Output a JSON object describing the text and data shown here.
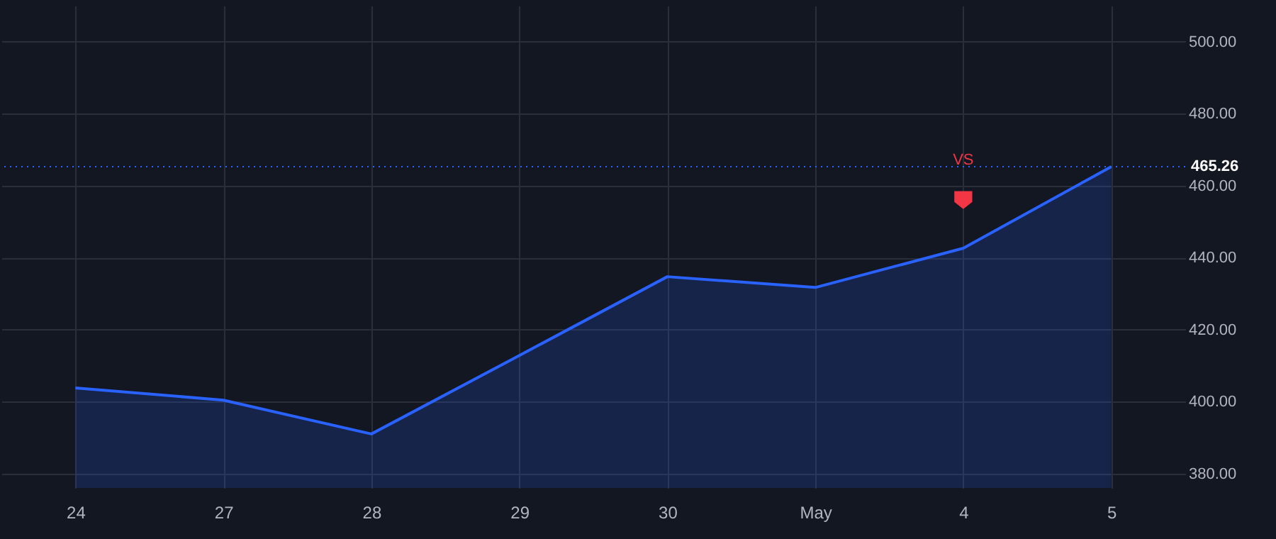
{
  "chart_data": {
    "type": "area",
    "categories": [
      "24",
      "27",
      "28",
      "29",
      "30",
      "May",
      "4",
      "5"
    ],
    "series": [
      {
        "color": "#2962ff",
        "values": [
          403.8,
          400.4,
          391,
          412.8,
          434.7,
          431.7,
          442.6,
          465.26
        ]
      }
    ],
    "ylim": [
      376,
      510
    ],
    "yticks": [
      {
        "value": 380,
        "label": "380.00"
      },
      {
        "value": 400,
        "label": "400.00"
      },
      {
        "value": 420,
        "label": "420.00"
      },
      {
        "value": 440,
        "label": "440.00"
      },
      {
        "value": 460,
        "label": "460.00"
      },
      {
        "value": 480,
        "label": "480.00"
      },
      {
        "value": 500,
        "label": "500.00"
      }
    ],
    "grid": true,
    "ref_lines": [
      {
        "axis": "y",
        "value": 465.26,
        "label": "465.26",
        "color": "#2962ff",
        "line_style": "dotted"
      }
    ],
    "annotations": [
      {
        "text": "VS",
        "x": "4",
        "y": 467
      }
    ]
  }
}
